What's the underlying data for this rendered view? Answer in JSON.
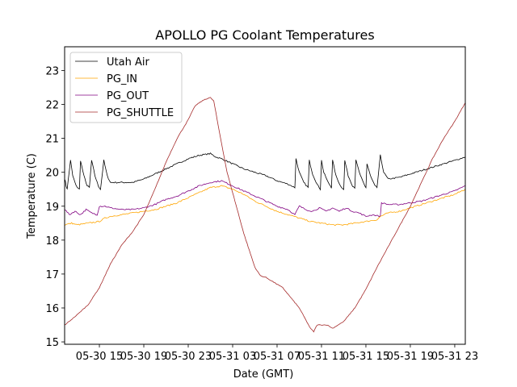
{
  "chart_data": {
    "type": "line",
    "title": "APOLLO PG Coolant Temperatures",
    "xlabel": "Date (GMT)",
    "ylabel": "Temperature (C)",
    "x_unit": "hours since 05-30 00:00 GMT",
    "xlim": [
      11.87,
      47.95
    ],
    "ylim": [
      14.93,
      23.7
    ],
    "x_ticks": [
      {
        "value": 15,
        "label": "05-30 15"
      },
      {
        "value": 19,
        "label": "05-30 19"
      },
      {
        "value": 23,
        "label": "05-30 23"
      },
      {
        "value": 27,
        "label": "05-31 03"
      },
      {
        "value": 31,
        "label": "05-31 07"
      },
      {
        "value": 35,
        "label": "05-31 11"
      },
      {
        "value": 39,
        "label": "05-31 15"
      },
      {
        "value": 43,
        "label": "05-31 19"
      },
      {
        "value": 47,
        "label": "05-31 23"
      }
    ],
    "y_ticks": [
      {
        "value": 15,
        "label": "15"
      },
      {
        "value": 16,
        "label": "16"
      },
      {
        "value": 17,
        "label": "17"
      },
      {
        "value": 18,
        "label": "18"
      },
      {
        "value": 19,
        "label": "19"
      },
      {
        "value": 20,
        "label": "20"
      },
      {
        "value": 21,
        "label": "21"
      },
      {
        "value": 22,
        "label": "22"
      },
      {
        "value": 23,
        "label": "23"
      }
    ],
    "grid": false,
    "legend_position": "top-left",
    "series": [
      {
        "name": "Utah Air",
        "color": "#000000",
        "x": [
          11.9,
          12.0,
          12.1,
          12.4,
          12.6,
          12.9,
          13.2,
          13.3,
          13.6,
          13.9,
          14.1,
          14.3,
          14.6,
          14.9,
          15.1,
          15.4,
          15.7,
          16.0,
          17.0,
          18.0,
          19.0,
          20.0,
          21.0,
          22.0,
          23.0,
          24.0,
          25.0,
          25.5,
          26.0,
          27.0,
          28.0,
          29.0,
          30.0,
          31.0,
          32.0,
          32.6,
          32.7,
          33.0,
          33.4,
          33.8,
          33.9,
          34.2,
          34.6,
          34.9,
          35.0,
          35.2,
          35.6,
          35.9,
          36.0,
          36.3,
          36.7,
          37.0,
          37.1,
          37.4,
          37.8,
          38.0,
          38.1,
          38.5,
          38.9,
          39.0,
          39.1,
          39.4,
          39.8,
          40.0,
          40.3,
          40.6,
          41.0,
          42.0,
          43.0,
          44.0,
          45.0,
          46.0,
          47.0,
          47.95
        ],
        "values": [
          19.8,
          19.6,
          19.5,
          20.35,
          19.9,
          19.6,
          19.5,
          20.35,
          19.9,
          19.6,
          19.55,
          20.35,
          19.9,
          19.6,
          19.5,
          20.35,
          19.9,
          19.7,
          19.7,
          19.7,
          19.8,
          19.95,
          20.1,
          20.25,
          20.4,
          20.5,
          20.55,
          20.45,
          20.4,
          20.25,
          20.1,
          20.0,
          19.9,
          19.75,
          19.65,
          19.55,
          20.4,
          20.0,
          19.7,
          19.55,
          20.35,
          19.95,
          19.65,
          19.5,
          20.35,
          20.0,
          19.7,
          19.55,
          20.35,
          19.9,
          19.6,
          19.5,
          20.35,
          19.9,
          19.6,
          19.55,
          20.35,
          19.9,
          19.6,
          19.55,
          20.25,
          19.9,
          19.6,
          19.55,
          20.5,
          20.0,
          19.8,
          19.85,
          19.95,
          20.05,
          20.15,
          20.25,
          20.35,
          20.45
        ]
      },
      {
        "name": "PG_IN",
        "color": "#ffa500",
        "x": [
          11.9,
          12.5,
          13.0,
          14.0,
          15.0,
          15.5,
          16.0,
          17.0,
          18.0,
          19.0,
          20.0,
          21.0,
          22.0,
          23.0,
          24.0,
          25.0,
          26.0,
          27.0,
          28.0,
          29.0,
          30.0,
          31.0,
          32.0,
          33.0,
          34.0,
          35.0,
          36.0,
          37.0,
          38.0,
          39.0,
          40.0,
          40.3,
          41.0,
          42.0,
          43.0,
          44.0,
          45.0,
          46.0,
          47.0,
          47.95
        ],
        "values": [
          18.45,
          18.5,
          18.45,
          18.5,
          18.55,
          18.65,
          18.7,
          18.75,
          18.8,
          18.85,
          18.9,
          19.0,
          19.1,
          19.25,
          19.4,
          19.55,
          19.6,
          19.5,
          19.35,
          19.15,
          19.0,
          18.85,
          18.75,
          18.65,
          18.55,
          18.5,
          18.45,
          18.45,
          18.5,
          18.55,
          18.6,
          18.7,
          18.8,
          18.85,
          18.95,
          19.05,
          19.15,
          19.25,
          19.35,
          19.5
        ]
      },
      {
        "name": "PG_OUT",
        "color": "#800080",
        "x": [
          11.9,
          12.3,
          12.8,
          13.3,
          13.8,
          14.3,
          14.8,
          15.0,
          15.5,
          16.0,
          17.0,
          18.0,
          19.0,
          20.0,
          21.0,
          22.0,
          23.0,
          24.0,
          25.0,
          26.0,
          27.0,
          28.0,
          29.0,
          30.0,
          31.0,
          32.0,
          32.6,
          33.0,
          33.6,
          34.2,
          34.8,
          35.4,
          36.0,
          36.6,
          37.2,
          37.8,
          38.4,
          39.0,
          39.6,
          40.3,
          40.4,
          41.0,
          42.0,
          43.0,
          44.0,
          45.0,
          46.0,
          47.0,
          47.95
        ],
        "values": [
          18.9,
          18.75,
          18.85,
          18.75,
          18.9,
          18.8,
          18.75,
          19.0,
          19.0,
          18.95,
          18.9,
          18.9,
          18.95,
          19.05,
          19.2,
          19.3,
          19.45,
          19.6,
          19.7,
          19.75,
          19.6,
          19.45,
          19.3,
          19.15,
          19.0,
          18.9,
          18.75,
          19.0,
          18.9,
          18.85,
          18.95,
          18.85,
          18.95,
          18.85,
          18.95,
          18.85,
          18.8,
          18.7,
          18.75,
          18.7,
          19.1,
          19.05,
          19.05,
          19.1,
          19.15,
          19.25,
          19.35,
          19.45,
          19.6
        ]
      },
      {
        "name": "PG_SHUTTLE",
        "color": "#a52a2a",
        "x": [
          11.9,
          13.0,
          14.0,
          15.0,
          16.0,
          17.0,
          18.0,
          19.0,
          20.0,
          21.0,
          22.0,
          23.0,
          23.6,
          24.0,
          24.5,
          25.0,
          25.3,
          25.8,
          26.5,
          27.0,
          27.5,
          28.0,
          28.5,
          29.0,
          29.5,
          30.0,
          30.5,
          31.0,
          31.5,
          32.0,
          32.5,
          33.0,
          33.5,
          34.0,
          34.3,
          34.6,
          35.0,
          35.5,
          36.0,
          36.5,
          37.0,
          37.5,
          38.0,
          39.0,
          40.0,
          41.0,
          42.0,
          43.0,
          44.0,
          45.0,
          46.0,
          47.0,
          47.95
        ],
        "values": [
          15.5,
          15.8,
          16.1,
          16.6,
          17.3,
          17.85,
          18.25,
          18.75,
          19.5,
          20.3,
          21.0,
          21.55,
          21.95,
          22.05,
          22.15,
          22.2,
          22.1,
          21.2,
          20.0,
          19.4,
          18.8,
          18.2,
          17.7,
          17.2,
          16.95,
          16.9,
          16.8,
          16.7,
          16.6,
          16.4,
          16.2,
          16.0,
          15.7,
          15.4,
          15.3,
          15.5,
          15.5,
          15.5,
          15.4,
          15.5,
          15.6,
          15.8,
          16.0,
          16.55,
          17.2,
          17.8,
          18.4,
          19.0,
          19.7,
          20.4,
          21.0,
          21.5,
          22.05
        ]
      }
    ]
  }
}
